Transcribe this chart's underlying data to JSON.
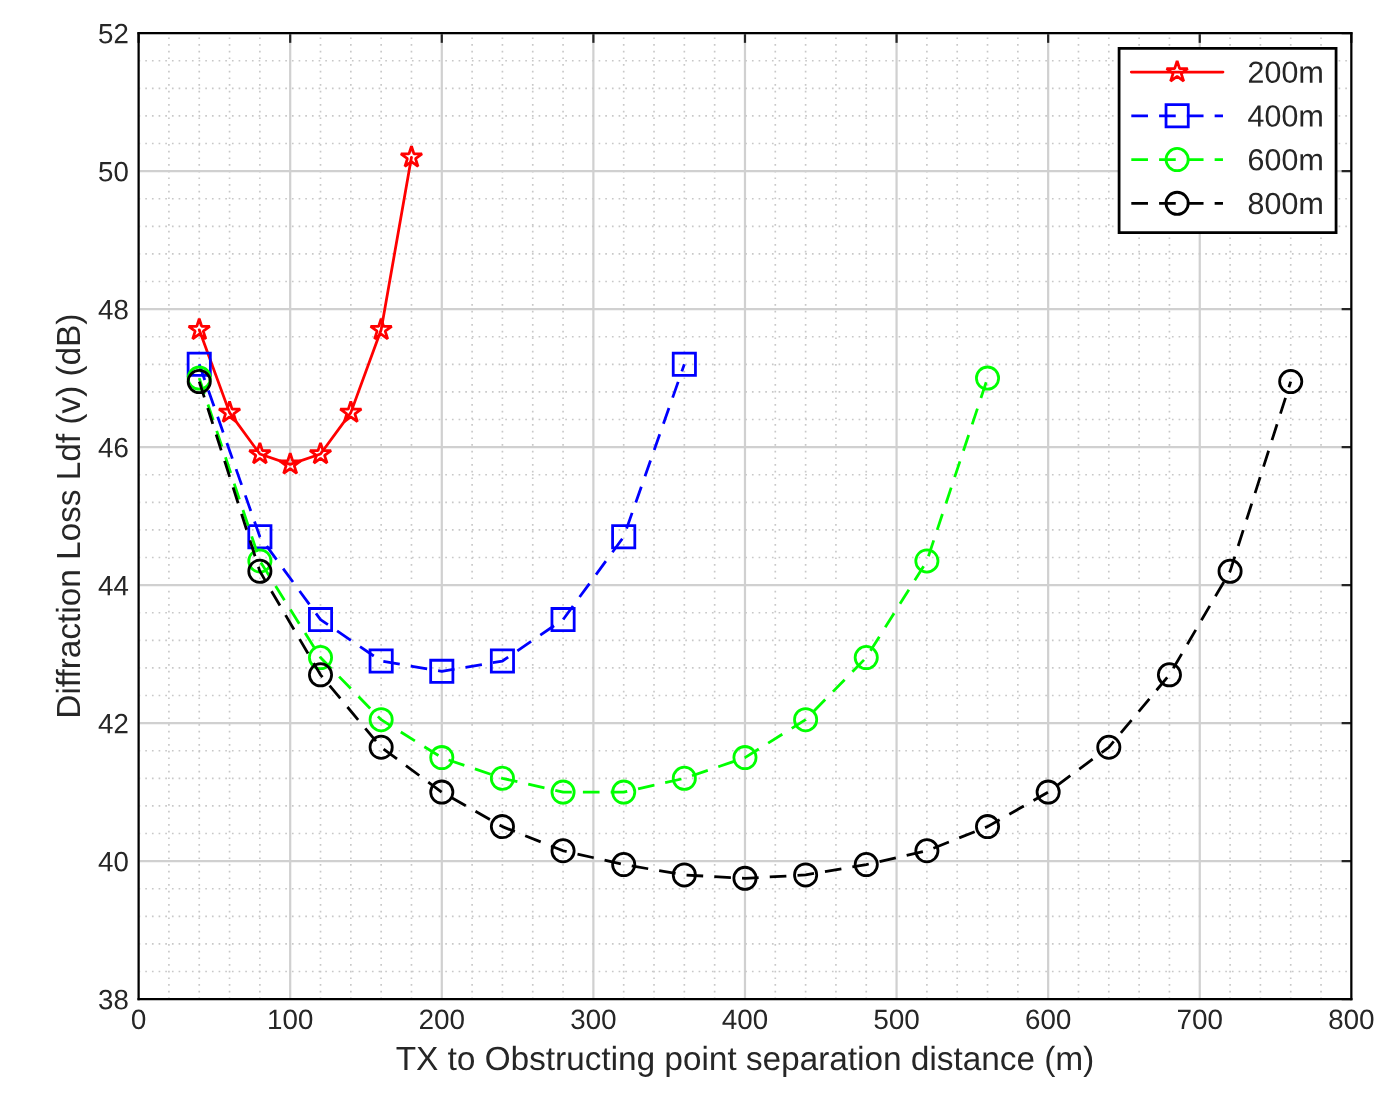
{
  "chart_data": {
    "type": "line",
    "xlabel": "TX to Obstructing point separation distance (m)",
    "ylabel": "Diffraction Loss Ldf (v) (dB)",
    "xlim": [
      0,
      800
    ],
    "xticks": [
      0,
      100,
      200,
      300,
      400,
      500,
      600,
      700,
      800
    ],
    "ylim": [
      38,
      52
    ],
    "yticks": [
      38,
      40,
      42,
      44,
      46,
      48,
      50,
      52
    ],
    "grid": true,
    "legend": "top right",
    "series": [
      {
        "name": "200m",
        "color": "#ff0000",
        "marker": "star",
        "line_style": "solid",
        "x": [
          40,
          60,
          80,
          100,
          120,
          140,
          160,
          180
        ],
        "values": [
          47.7,
          46.5,
          45.9,
          45.75,
          45.9,
          46.5,
          47.7,
          50.2
        ]
      },
      {
        "name": "400m",
        "color": "#0000ff",
        "marker": "square",
        "line_style": "dashed",
        "x": [
          40,
          80,
          120,
          160,
          200,
          240,
          280,
          320,
          360
        ],
        "values": [
          47.2,
          44.7,
          43.5,
          42.9,
          42.75,
          42.9,
          43.5,
          44.7,
          47.2
        ]
      },
      {
        "name": "600m",
        "color": "#00ff00",
        "marker": "circle",
        "line_style": "dashed",
        "x": [
          40,
          80,
          120,
          160,
          200,
          240,
          280,
          320,
          360,
          400,
          440,
          480,
          520,
          560
        ],
        "values": [
          47.0,
          44.35,
          42.95,
          42.05,
          41.5,
          41.2,
          41.0,
          41.0,
          41.2,
          41.5,
          42.05,
          42.95,
          44.35,
          47.0
        ]
      },
      {
        "name": "800m",
        "color": "#000000",
        "marker": "circle",
        "line_style": "dashed",
        "x": [
          40,
          80,
          120,
          160,
          200,
          240,
          280,
          320,
          360,
          400,
          440,
          480,
          520,
          560,
          600,
          640,
          680,
          720,
          760
        ],
        "values": [
          46.95,
          44.2,
          42.7,
          41.65,
          41.0,
          40.5,
          40.15,
          39.95,
          39.8,
          39.75,
          39.8,
          39.95,
          40.15,
          40.5,
          41.0,
          41.65,
          42.7,
          44.2,
          46.95
        ]
      }
    ]
  }
}
